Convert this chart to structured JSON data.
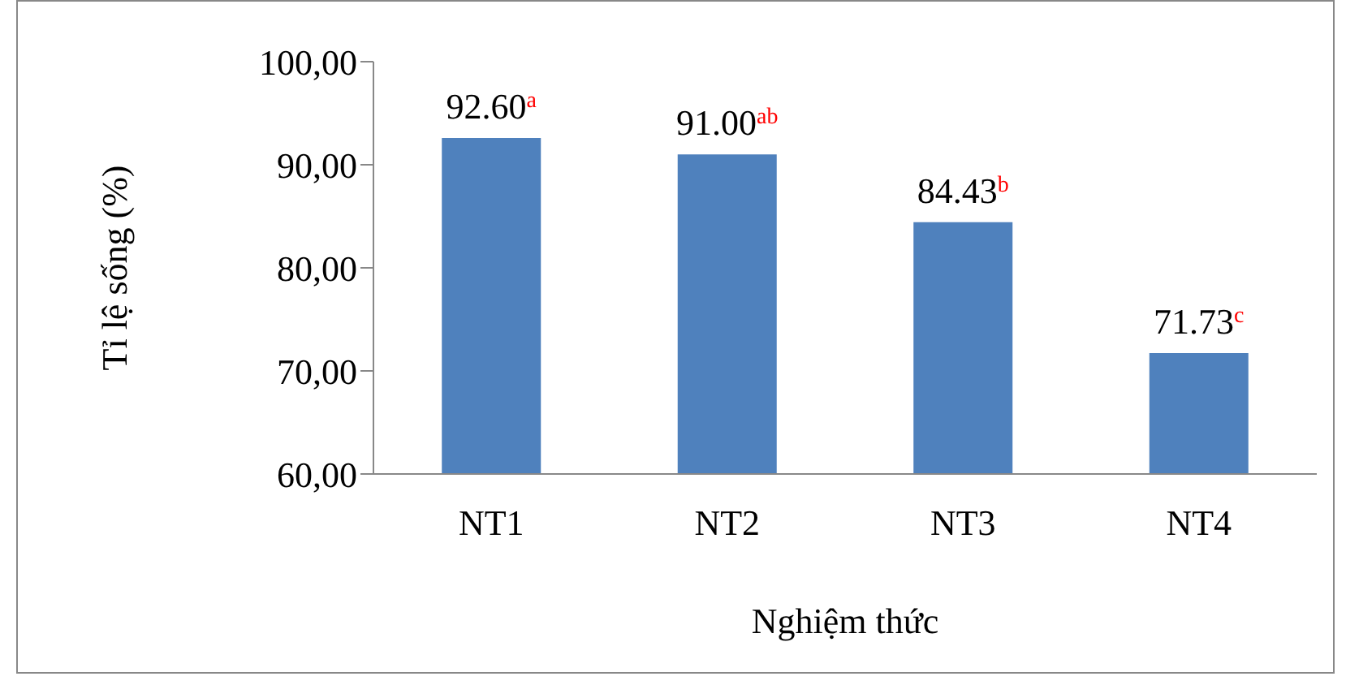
{
  "chart_data": {
    "type": "bar",
    "xlabel": "Nghiệm thức",
    "ylabel": "Tỉ lệ sống (%)",
    "categories": [
      "NT1",
      "NT2",
      "NT3",
      "NT4"
    ],
    "series": [
      {
        "color": "#4f81bd",
        "values": [
          92.6,
          91.0,
          84.43,
          71.73
        ],
        "value_labels": [
          "92.60$^{a}$",
          "91.00$^{ab}$",
          "84.43$^{b}$",
          "71.73$^{c}$"
        ]
      }
    ],
    "ylim": [
      60,
      100
    ],
    "yticks": [
      {
        "value": 60,
        "label": "60,00"
      },
      {
        "value": 70,
        "label": "70,00"
      },
      {
        "value": 80,
        "label": "80,00"
      },
      {
        "value": 90,
        "label": "90,00"
      },
      {
        "value": 100,
        "label": "100,00"
      }
    ],
    "grid": false,
    "legend": false
  }
}
